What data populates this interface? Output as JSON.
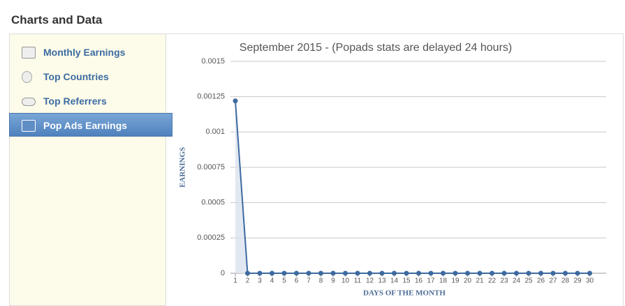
{
  "header": {
    "title": "Charts and Data"
  },
  "sidebar": {
    "items": [
      "Monthly Earnings",
      "Top Countries",
      "Top Referrers",
      "Pop Ads Earnings"
    ],
    "active": 3
  },
  "chart_data": {
    "type": "line",
    "title": "September 2015 - (Popads stats are delayed 24 hours)",
    "x_label": "DAYS OF THE MONTH",
    "y_label": "EARNINGS",
    "categories": [
      "1",
      "2",
      "3",
      "4",
      "5",
      "6",
      "7",
      "8",
      "9",
      "10",
      "11",
      "12",
      "13",
      "14",
      "15",
      "16",
      "17",
      "18",
      "19",
      "20",
      "21",
      "22",
      "23",
      "24",
      "25",
      "26",
      "27",
      "28",
      "29",
      "30"
    ],
    "series": [
      {
        "name": "Earnings",
        "color": "#3d6aa0",
        "values": [
          0.00122,
          0,
          0,
          0,
          0,
          0,
          0,
          0,
          0,
          0,
          0,
          0,
          0,
          0,
          0,
          0,
          0,
          0,
          0,
          0,
          0,
          0,
          0,
          0,
          0,
          0,
          0,
          0,
          0,
          0
        ]
      }
    ],
    "ylim": [
      0,
      0.0015
    ],
    "yticks": [
      0,
      0.00025,
      0.0005,
      0.00075,
      0.001,
      0.00125,
      0.0015
    ],
    "grid": true
  }
}
